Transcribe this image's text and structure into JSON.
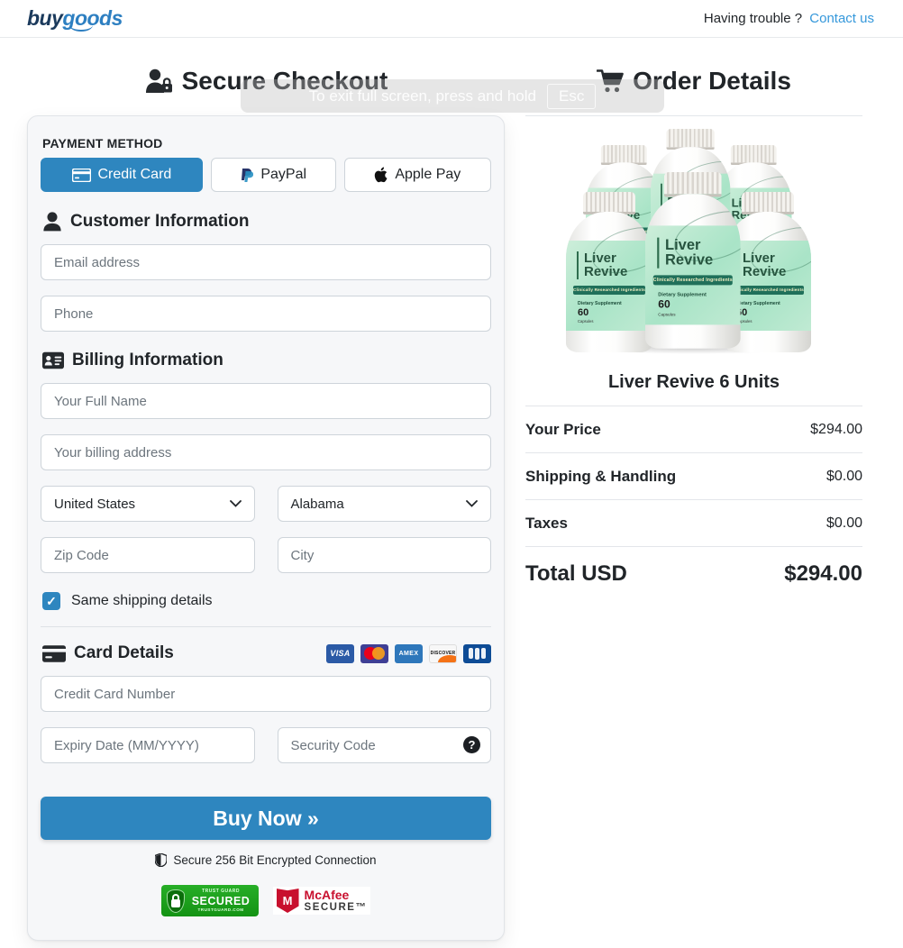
{
  "header": {
    "logo_part1": "buy",
    "logo_part2": "goods",
    "help_text": "Having trouble ?",
    "contact_link": "Contact us"
  },
  "fullscreen_notice": {
    "text": "To exit full screen, press and hold",
    "key_label": "Esc"
  },
  "checkout": {
    "title": "Secure Checkout",
    "payment": {
      "label": "PAYMENT METHOD",
      "credit_card": "Credit Card",
      "paypal": "PayPal",
      "apple_pay": "Apple Pay"
    },
    "customer": {
      "title": "Customer Information",
      "email_placeholder": "Email address",
      "phone_placeholder": "Phone"
    },
    "billing": {
      "title": "Billing Information",
      "fullname_placeholder": "Your Full Name",
      "address_placeholder": "Your billing address",
      "country_value": "United States",
      "state_value": "Alabama",
      "zip_placeholder": "Zip Code",
      "city_placeholder": "City",
      "same_shipping_label": "Same shipping details"
    },
    "card": {
      "title": "Card Details",
      "number_placeholder": "Credit Card Number",
      "expiry_placeholder": "Expiry Date (MM/YYYY)",
      "security_placeholder": "Security Code",
      "help_glyph": "?",
      "brand_labels": {
        "visa": "VISA",
        "amex": "AMEX",
        "discover": "DISCOVER"
      }
    },
    "buy_button_label": "Buy Now »",
    "secure_note": "Secure 256 Bit Encrypted Connection",
    "trust_guard": {
      "top": "TRUST GUARD",
      "middle": "SECURED",
      "bottom": "TRUSTGUARD.COM"
    },
    "mcafee": {
      "top": "McAfee",
      "bottom": "SECURE™",
      "shield_letter": "M"
    },
    "checkbox_glyph": "✓"
  },
  "order": {
    "title": "Order Details",
    "product_name": "Liver Revive 6 Units",
    "bottle": {
      "brand1": "Liver",
      "brand2": "Revive",
      "band": "Clinically Researched Ingredients",
      "subtitle": "Dietary Supplement",
      "count": "60",
      "unit": "Capsules"
    },
    "rows": [
      {
        "label": "Your Price",
        "value": "$294.00"
      },
      {
        "label": "Shipping & Handling",
        "value": "$0.00"
      },
      {
        "label": "Taxes",
        "value": "$0.00"
      }
    ],
    "total_label": "Total USD",
    "total_value": "$294.00"
  },
  "colors": {
    "accent": "#2e86bf",
    "link": "#3598db"
  }
}
